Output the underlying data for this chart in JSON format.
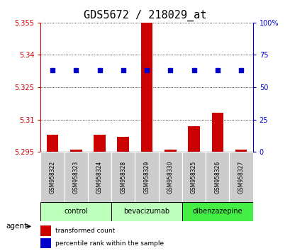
{
  "title": "GDS5672 / 218029_at",
  "samples": [
    "GSM958322",
    "GSM958323",
    "GSM958324",
    "GSM958328",
    "GSM958329",
    "GSM958330",
    "GSM958325",
    "GSM958326",
    "GSM958327"
  ],
  "bar_values": [
    5.303,
    5.296,
    5.303,
    5.302,
    5.355,
    5.296,
    5.307,
    5.313,
    5.296
  ],
  "dot_values": [
    5.333,
    5.333,
    5.333,
    5.333,
    5.333,
    5.333,
    5.333,
    5.333,
    5.333
  ],
  "ymin": 5.295,
  "ymax": 5.355,
  "yticks_left": [
    5.295,
    5.31,
    5.325,
    5.34,
    5.355
  ],
  "ytick_labels_left": [
    "5.295",
    "5.31",
    "5.325",
    "5.34",
    "5.355"
  ],
  "right_ticks": [
    0,
    25,
    50,
    75,
    100
  ],
  "right_tick_values": [
    5.295,
    5.31,
    5.325,
    5.34,
    5.355
  ],
  "right_tick_labels": [
    "0",
    "25",
    "50",
    "75",
    "100%"
  ],
  "group_info": [
    {
      "label": "control",
      "start": 0,
      "end": 2,
      "color": "#bbffbb"
    },
    {
      "label": "bevacizumab",
      "start": 3,
      "end": 5,
      "color": "#bbffbb"
    },
    {
      "label": "dibenzazepine",
      "start": 6,
      "end": 8,
      "color": "#44ee44"
    }
  ],
  "bar_color": "#cc0000",
  "dot_color": "#0000cc",
  "bar_baseline": 5.295,
  "legend_bar": "transformed count",
  "legend_dot": "percentile rank within the sample",
  "left_axis_color": "#cc0000",
  "right_axis_color": "#0000cc",
  "sample_box_color": "#cccccc",
  "title_fontsize": 11
}
